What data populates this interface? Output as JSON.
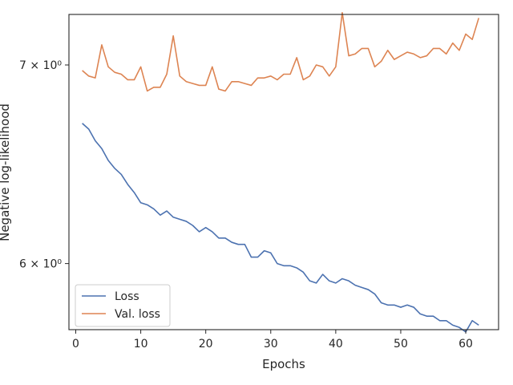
{
  "chart_data": {
    "type": "line",
    "xlabel": "Epochs",
    "ylabel": "Negative log-likelihood",
    "xlim": [
      -1.05,
      65.05
    ],
    "ylim": [
      5.7,
      7.28
    ],
    "y_scale": "log",
    "grid": false,
    "legend_position": "lower-left",
    "x_ticks": [
      0,
      10,
      20,
      30,
      40,
      50,
      60
    ],
    "y_ticks": [
      {
        "value": 6,
        "label": "6 × 10⁰"
      },
      {
        "value": 7,
        "label": "7 × 10⁰"
      }
    ],
    "x": [
      1,
      2,
      3,
      4,
      5,
      6,
      7,
      8,
      9,
      10,
      11,
      12,
      13,
      14,
      15,
      16,
      17,
      18,
      19,
      20,
      21,
      22,
      23,
      24,
      25,
      26,
      27,
      28,
      29,
      30,
      31,
      32,
      33,
      34,
      35,
      36,
      37,
      38,
      39,
      40,
      41,
      42,
      43,
      44,
      45,
      46,
      47,
      48,
      49,
      50,
      51,
      52,
      53,
      54,
      55,
      56,
      57,
      58,
      59,
      60,
      61,
      62
    ],
    "series": [
      {
        "name": "Loss",
        "color": "#4c72b0",
        "values": [
          6.69,
          6.66,
          6.6,
          6.56,
          6.5,
          6.46,
          6.43,
          6.38,
          6.34,
          6.29,
          6.28,
          6.26,
          6.23,
          6.25,
          6.22,
          6.21,
          6.2,
          6.18,
          6.15,
          6.17,
          6.15,
          6.12,
          6.12,
          6.1,
          6.09,
          6.09,
          6.03,
          6.03,
          6.06,
          6.05,
          6.0,
          5.99,
          5.99,
          5.98,
          5.96,
          5.92,
          5.91,
          5.95,
          5.92,
          5.91,
          5.93,
          5.92,
          5.9,
          5.89,
          5.88,
          5.86,
          5.82,
          5.81,
          5.81,
          5.8,
          5.81,
          5.8,
          5.77,
          5.76,
          5.76,
          5.74,
          5.74,
          5.72,
          5.71,
          5.69,
          5.74,
          5.72
        ]
      },
      {
        "name": "Val. loss",
        "color": "#dd8452",
        "values": [
          6.97,
          6.94,
          6.93,
          7.11,
          6.99,
          6.96,
          6.95,
          6.92,
          6.92,
          6.99,
          6.86,
          6.88,
          6.88,
          6.95,
          7.16,
          6.94,
          6.91,
          6.9,
          6.89,
          6.89,
          6.99,
          6.87,
          6.86,
          6.91,
          6.91,
          6.9,
          6.89,
          6.93,
          6.93,
          6.94,
          6.92,
          6.95,
          6.95,
          7.04,
          6.92,
          6.94,
          7.0,
          6.99,
          6.94,
          6.99,
          7.29,
          7.05,
          7.06,
          7.09,
          7.09,
          6.99,
          7.02,
          7.08,
          7.03,
          7.05,
          7.07,
          7.06,
          7.04,
          7.05,
          7.09,
          7.09,
          7.06,
          7.12,
          7.08,
          7.17,
          7.14,
          7.26
        ]
      }
    ]
  }
}
